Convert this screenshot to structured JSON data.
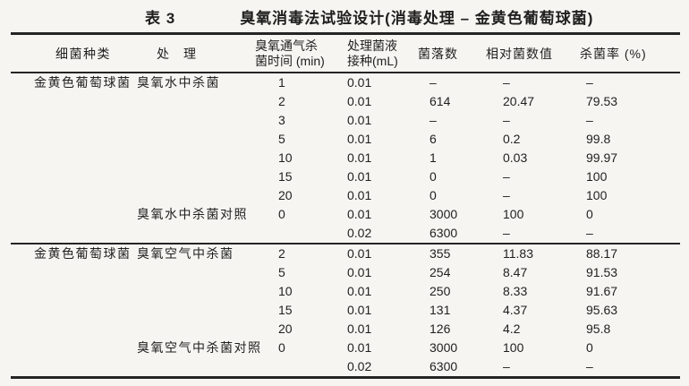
{
  "title": {
    "label": "表 3",
    "text": "臭氧消毒法试验设计(消毒处理 – 金黄色葡萄球菌)"
  },
  "header": {
    "species": "细菌种类",
    "treatment": "处　理",
    "time_line1": "臭氧通气杀",
    "time_line2": "菌时间 (min)",
    "inoculation_line1": "处理菌液",
    "inoculation_line2": "接种(mL)",
    "colony": "菌落数",
    "relative": "相对菌数值",
    "kill_rate": "杀菌率 (%)"
  },
  "sections": [
    {
      "rows": [
        {
          "species": "金黄色葡萄球菌",
          "treatment": "臭氧水中杀菌",
          "time": "1",
          "inoculation": "0.01",
          "colony": "–",
          "relative": "–",
          "kill": "–"
        },
        {
          "species": "",
          "treatment": "",
          "time": "2",
          "inoculation": "0.01",
          "colony": "614",
          "relative": "20.47",
          "kill": "79.53"
        },
        {
          "species": "",
          "treatment": "",
          "time": "3",
          "inoculation": "0.01",
          "colony": "–",
          "relative": "–",
          "kill": "–"
        },
        {
          "species": "",
          "treatment": "",
          "time": "5",
          "inoculation": "0.01",
          "colony": "6",
          "relative": "0.2",
          "kill": "99.8"
        },
        {
          "species": "",
          "treatment": "",
          "time": "10",
          "inoculation": "0.01",
          "colony": "1",
          "relative": "0.03",
          "kill": "99.97"
        },
        {
          "species": "",
          "treatment": "",
          "time": "15",
          "inoculation": "0.01",
          "colony": "0",
          "relative": "–",
          "kill": "100"
        },
        {
          "species": "",
          "treatment": "",
          "time": "20",
          "inoculation": "0.01",
          "colony": "0",
          "relative": "–",
          "kill": "100"
        },
        {
          "species": "",
          "treatment": "臭氧水中杀菌对照",
          "time": "0",
          "inoculation": "0.01",
          "colony": "3000",
          "relative": "100",
          "kill": "0"
        },
        {
          "species": "",
          "treatment": "",
          "time": "",
          "inoculation": "0.02",
          "colony": "6300",
          "relative": "–",
          "kill": "–"
        }
      ]
    },
    {
      "rows": [
        {
          "species": "金黄色葡萄球菌",
          "treatment": "臭氧空气中杀菌",
          "time": "2",
          "inoculation": "0.01",
          "colony": "355",
          "relative": "11.83",
          "kill": "88.17"
        },
        {
          "species": "",
          "treatment": "",
          "time": "5",
          "inoculation": "0.01",
          "colony": "254",
          "relative": "8.47",
          "kill": "91.53"
        },
        {
          "species": "",
          "treatment": "",
          "time": "10",
          "inoculation": "0.01",
          "colony": "250",
          "relative": "8.33",
          "kill": "91.67"
        },
        {
          "species": "",
          "treatment": "",
          "time": "15",
          "inoculation": "0.01",
          "colony": "131",
          "relative": "4.37",
          "kill": "95.63"
        },
        {
          "species": "",
          "treatment": "",
          "time": "20",
          "inoculation": "0.01",
          "colony": "126",
          "relative": "4.2",
          "kill": "95.8"
        },
        {
          "species": "",
          "treatment": "臭氧空气中杀菌对照",
          "time": "0",
          "inoculation": "0.01",
          "colony": "3000",
          "relative": "100",
          "kill": "0"
        },
        {
          "species": "",
          "treatment": "",
          "time": "",
          "inoculation": "0.02",
          "colony": "6300",
          "relative": "–",
          "kill": "–"
        }
      ]
    }
  ],
  "colors": {
    "background": "#f6f5f1",
    "text": "#1f1f1f",
    "rule": "#252525"
  }
}
